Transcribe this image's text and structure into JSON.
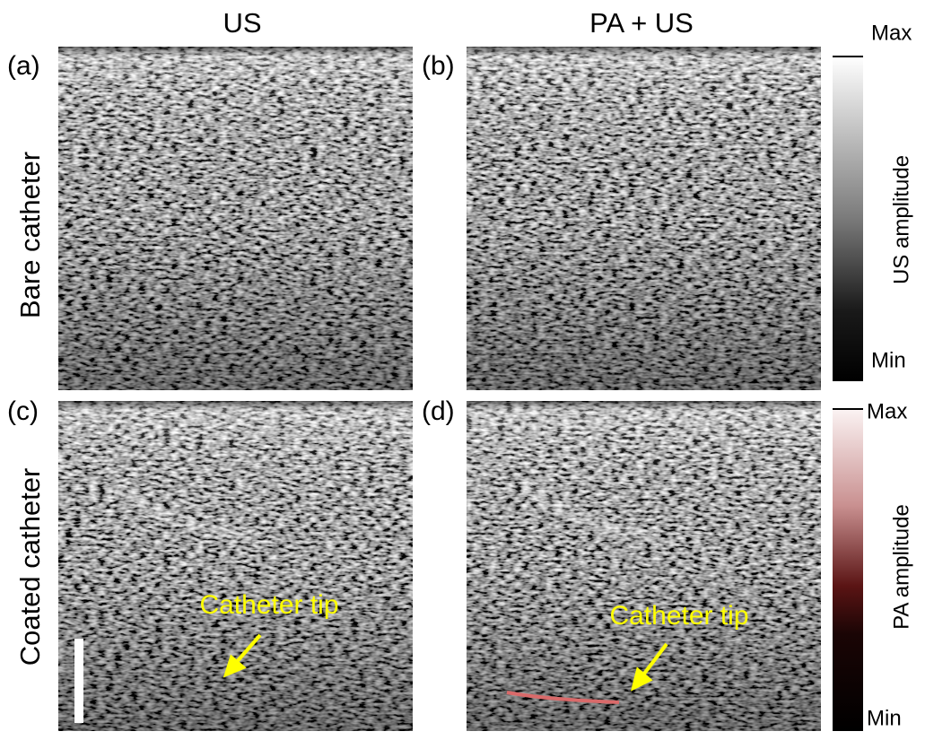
{
  "header": {
    "columns": [
      "US",
      "PA + US"
    ]
  },
  "rows": [
    "Bare catheter",
    "Coated catheter"
  ],
  "panels": [
    "(a)",
    "(b)",
    "(c)",
    "(d)"
  ],
  "colorbars": [
    {
      "max": "Max",
      "min": "Min",
      "title": "US amplitude"
    },
    {
      "max": "Max",
      "min": "Min",
      "title": "PA amplitude"
    }
  ],
  "annotations": [
    "Catheter tip",
    "Catheter tip"
  ]
}
